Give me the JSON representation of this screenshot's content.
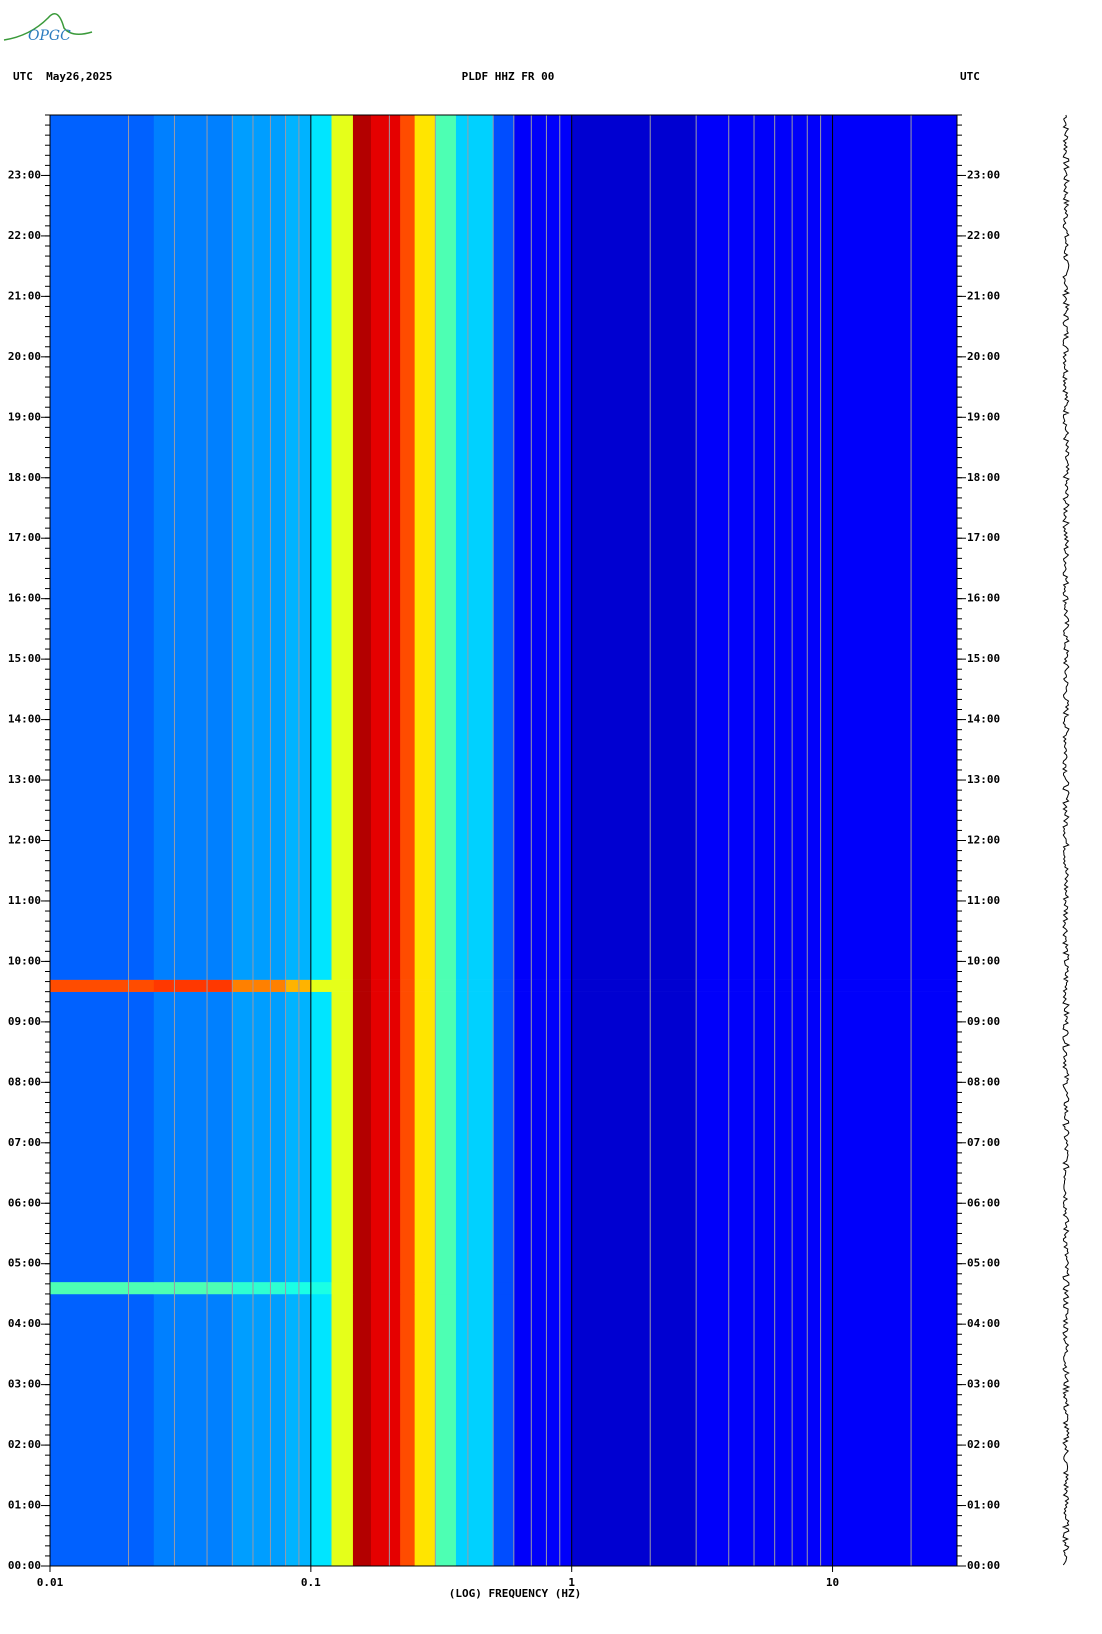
{
  "chart_data": {
    "type": "heatmap",
    "logo": "OPGC",
    "header_left": "UTC  May26,2025",
    "title": "PLDF HHZ FR 00",
    "header_right": "UTC",
    "xlabel": "(LOG) FREQUENCY (HZ)",
    "xscale": "log",
    "colormap": "jet",
    "xlim": [
      0.01,
      30
    ],
    "xticks": [
      0.01,
      0.1,
      1,
      10
    ],
    "xminor_ticks": [
      0.02,
      0.03,
      0.04,
      0.05,
      0.06,
      0.07,
      0.08,
      0.09,
      0.2,
      0.3,
      0.4,
      0.5,
      0.6,
      0.7,
      0.8,
      0.9,
      2,
      3,
      4,
      5,
      6,
      7,
      8,
      9,
      20
    ],
    "ylim": [
      0,
      24
    ],
    "yticks": [
      {
        "value": 0,
        "label": "00:00"
      },
      {
        "value": 1,
        "label": "01:00"
      },
      {
        "value": 2,
        "label": "02:00"
      },
      {
        "value": 3,
        "label": "03:00"
      },
      {
        "value": 4,
        "label": "04:00"
      },
      {
        "value": 5,
        "label": "05:00"
      },
      {
        "value": 6,
        "label": "06:00"
      },
      {
        "value": 7,
        "label": "07:00"
      },
      {
        "value": 8,
        "label": "08:00"
      },
      {
        "value": 9,
        "label": "09:00"
      },
      {
        "value": 10,
        "label": "10:00"
      },
      {
        "value": 11,
        "label": "11:00"
      },
      {
        "value": 12,
        "label": "12:00"
      },
      {
        "value": 13,
        "label": "13:00"
      },
      {
        "value": 14,
        "label": "14:00"
      },
      {
        "value": 15,
        "label": "15:00"
      },
      {
        "value": 16,
        "label": "16:00"
      },
      {
        "value": 17,
        "label": "17:00"
      },
      {
        "value": 18,
        "label": "18:00"
      },
      {
        "value": 19,
        "label": "19:00"
      },
      {
        "value": 20,
        "label": "20:00"
      },
      {
        "value": 21,
        "label": "21:00"
      },
      {
        "value": 22,
        "label": "22:00"
      },
      {
        "value": 23,
        "label": "23:00"
      }
    ],
    "x_bins": [
      0.01,
      0.025,
      0.05,
      0.08,
      0.1,
      0.12,
      0.145,
      0.17,
      0.22,
      0.25,
      0.3,
      0.36,
      0.5,
      0.6,
      1,
      3,
      30
    ],
    "y_bins": [
      0,
      4.5,
      4.7,
      9.5,
      9.7,
      24
    ],
    "values": [
      [
        0.22,
        0.25,
        0.28,
        0.3,
        0.35,
        0.6,
        0.95,
        0.9,
        0.8,
        0.65,
        0.45,
        0.33,
        0.2,
        0.12,
        0.08,
        0.12
      ],
      [
        0.45,
        0.45,
        0.42,
        0.4,
        0.4,
        0.6,
        0.95,
        0.9,
        0.8,
        0.65,
        0.45,
        0.33,
        0.2,
        0.12,
        0.08,
        0.12
      ],
      [
        0.22,
        0.25,
        0.28,
        0.3,
        0.35,
        0.6,
        0.95,
        0.9,
        0.8,
        0.65,
        0.45,
        0.33,
        0.2,
        0.12,
        0.08,
        0.12
      ],
      [
        0.8,
        0.82,
        0.75,
        0.7,
        0.6,
        0.6,
        0.95,
        0.9,
        0.8,
        0.65,
        0.45,
        0.33,
        0.2,
        0.12,
        0.08,
        0.12
      ],
      [
        0.22,
        0.25,
        0.28,
        0.3,
        0.35,
        0.6,
        0.95,
        0.9,
        0.8,
        0.65,
        0.45,
        0.33,
        0.2,
        0.12,
        0.08,
        0.12
      ]
    ]
  }
}
